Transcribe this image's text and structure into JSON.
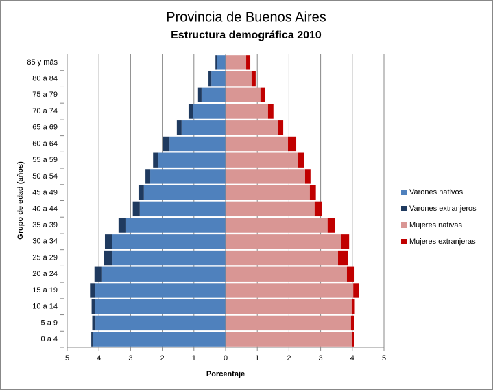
{
  "chart_data": {
    "type": "pyramid",
    "title": "Provincia de Buenos Aires",
    "subtitle": "Estructura demográfica 2010",
    "x_label": "Porcentaje",
    "y_label": "Grupo de edad (años)",
    "categories": [
      "0 a 4",
      "5 a 9",
      "10 a 14",
      "15 a 19",
      "20 a 24",
      "25 a 29",
      "30 a 34",
      "35 a 39",
      "40 a 44",
      "45 a 49",
      "50 a 54",
      "55 a 59",
      "60 a 64",
      "65 a 69",
      "70 a 74",
      "75 a 79",
      "80 a 84",
      "85 y más"
    ],
    "series": [
      {
        "name": "Varones nativos",
        "color": "#4f81bd",
        "values": [
          -4.2,
          -4.11,
          -4.13,
          -4.13,
          -3.9,
          -3.57,
          -3.59,
          -3.14,
          -2.71,
          -2.58,
          -2.38,
          -2.12,
          -1.77,
          -1.39,
          -1.02,
          -0.76,
          -0.45,
          -0.28
        ]
      },
      {
        "name": "Varones extranjeros",
        "color": "#1f3a5f",
        "values": [
          -0.04,
          -0.1,
          -0.1,
          -0.15,
          -0.24,
          -0.28,
          -0.22,
          -0.24,
          -0.22,
          -0.17,
          -0.15,
          -0.17,
          -0.22,
          -0.15,
          -0.15,
          -0.11,
          -0.09,
          -0.04
        ]
      },
      {
        "name": "Mujeres nativas",
        "color": "#d99694",
        "values": [
          4.0,
          3.96,
          3.98,
          4.03,
          3.83,
          3.55,
          3.64,
          3.22,
          2.81,
          2.66,
          2.51,
          2.29,
          1.97,
          1.65,
          1.34,
          1.1,
          0.82,
          0.65
        ]
      },
      {
        "name": "Mujeres extranjeras",
        "color": "#c00000",
        "values": [
          0.06,
          0.1,
          0.1,
          0.17,
          0.24,
          0.32,
          0.26,
          0.24,
          0.22,
          0.19,
          0.17,
          0.19,
          0.26,
          0.17,
          0.17,
          0.15,
          0.13,
          0.13
        ]
      }
    ],
    "xlim": [
      -5,
      5
    ],
    "xticks": [
      {
        "value": -5,
        "label": "5"
      },
      {
        "value": -4,
        "label": "4"
      },
      {
        "value": -3,
        "label": "3"
      },
      {
        "value": -2,
        "label": "2"
      },
      {
        "value": -1,
        "label": "1"
      },
      0,
      1,
      2,
      3,
      4,
      5
    ],
    "grid": true,
    "legend": "right"
  }
}
